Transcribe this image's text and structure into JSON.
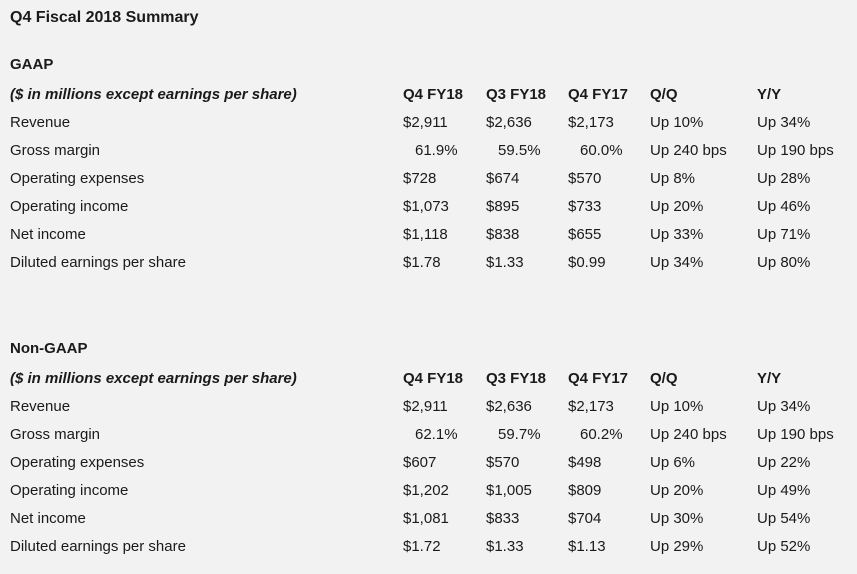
{
  "page": {
    "background_color": "#f2f2f2",
    "text_color": "#1a1a1a",
    "title": "Q4 Fiscal 2018 Summary"
  },
  "chart_data": {
    "type": "table",
    "title": "Q4 Fiscal 2018 Summary",
    "unit_note": "($ in millions except earnings per share)",
    "columns": [
      "Q4 FY18",
      "Q3 FY18",
      "Q4 FY17",
      "Q/Q",
      "Y/Y"
    ],
    "sections": [
      {
        "heading": "GAAP",
        "rows": [
          {
            "label": "Revenue",
            "values": [
              "$2,911",
              "$2,636",
              "$2,173",
              "Up 10%",
              "Up 34%"
            ]
          },
          {
            "label": "Gross margin",
            "values": [
              "61.9%",
              "59.5%",
              "60.0%",
              "Up 240 bps",
              "Up 190 bps"
            ]
          },
          {
            "label": "Operating expenses",
            "values": [
              "$728",
              "$674",
              "$570",
              "Up 8%",
              "Up 28%"
            ]
          },
          {
            "label": "Operating income",
            "values": [
              "$1,073",
              "$895",
              "$733",
              "Up 20%",
              "Up 46%"
            ]
          },
          {
            "label": "Net income",
            "values": [
              "$1,118",
              "$838",
              "$655",
              "Up 33%",
              "Up 71%"
            ]
          },
          {
            "label": "Diluted earnings per share",
            "values": [
              "$1.78",
              "$1.33",
              "$0.99",
              "Up 34%",
              "Up 80%"
            ]
          }
        ]
      },
      {
        "heading": "Non-GAAP",
        "rows": [
          {
            "label": "Revenue",
            "values": [
              "$2,911",
              "$2,636",
              "$2,173",
              "Up 10%",
              "Up 34%"
            ]
          },
          {
            "label": "Gross margin",
            "values": [
              "62.1%",
              "59.7%",
              "60.2%",
              "Up 240 bps",
              "Up 190 bps"
            ]
          },
          {
            "label": "Operating expenses",
            "values": [
              "$607",
              "$570",
              "$498",
              "Up 6%",
              "Up 22%"
            ]
          },
          {
            "label": "Operating income",
            "values": [
              "$1,202",
              "$1,005",
              "$809",
              "Up 20%",
              "Up 49%"
            ]
          },
          {
            "label": "Net income",
            "values": [
              "$1,081",
              "$833",
              "$704",
              "Up 30%",
              "Up 54%"
            ]
          },
          {
            "label": "Diluted earnings per share",
            "values": [
              "$1.72",
              "$1.33",
              "$1.13",
              "Up 29%",
              "Up 52%"
            ]
          }
        ]
      }
    ]
  }
}
